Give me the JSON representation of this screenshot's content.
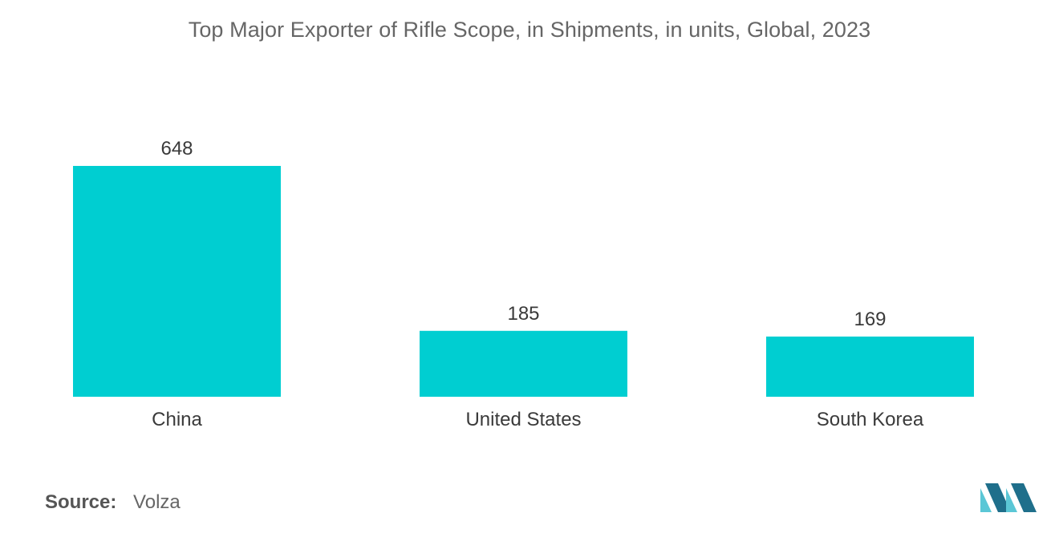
{
  "chart_data": {
    "type": "bar",
    "title": "Top Major Exporter of Rifle Scope, in Shipments, in units, Global, 2023",
    "categories": [
      "China",
      "United States",
      "South Korea"
    ],
    "values": [
      648,
      185,
      169
    ],
    "xlabel": "",
    "ylabel": "",
    "ylim": [
      0,
      648
    ],
    "grid": false,
    "legend": "none",
    "bar_color": "#00CED1"
  },
  "source": {
    "label": "Source:",
    "value": "Volza"
  },
  "colors": {
    "logo_dark": "#1F6F8B",
    "logo_light": "#5BC7D6"
  }
}
